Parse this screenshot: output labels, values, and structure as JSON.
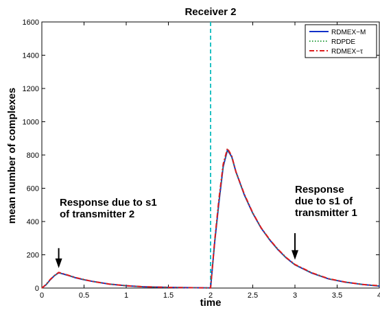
{
  "chart_data": {
    "type": "line",
    "title": "Receiver 2",
    "xlabel": "time",
    "ylabel": "mean number of complexes",
    "xlim": [
      0,
      4
    ],
    "ylim": [
      0,
      1600
    ],
    "xticks": [
      "0",
      "0.5",
      "1",
      "1.5",
      "2",
      "2.5",
      "3",
      "3.5",
      "4"
    ],
    "yticks": [
      "0",
      "200",
      "400",
      "600",
      "800",
      "1000",
      "1200",
      "1400",
      "1600"
    ],
    "legend_position": "top-right",
    "vline": {
      "x": 2,
      "color": "#22c1c3",
      "style": "dashed"
    },
    "x": [
      0,
      0.05,
      0.1,
      0.15,
      0.2,
      0.3,
      0.4,
      0.5,
      0.6,
      0.8,
      1.0,
      1.2,
      1.5,
      1.8,
      2.0,
      2.05,
      2.1,
      2.15,
      2.2,
      2.25,
      2.3,
      2.4,
      2.5,
      2.6,
      2.7,
      2.8,
      2.9,
      3.0,
      3.2,
      3.4,
      3.6,
      3.8,
      4.0
    ],
    "series": [
      {
        "name": "RDMEX−M",
        "color": "#1030c8",
        "style": "solid",
        "values": [
          0,
          20,
          50,
          75,
          92,
          78,
          62,
          50,
          40,
          24,
          14,
          8,
          4,
          2,
          1,
          280,
          520,
          730,
          830,
          790,
          700,
          560,
          450,
          360,
          290,
          230,
          180,
          140,
          90,
          55,
          35,
          22,
          12
        ]
      },
      {
        "name": "RDPDE",
        "color": "#2ea043",
        "style": "dotted",
        "values": [
          0,
          20,
          50,
          75,
          92,
          78,
          62,
          50,
          40,
          24,
          14,
          8,
          4,
          2,
          1,
          280,
          520,
          730,
          835,
          785,
          695,
          560,
          450,
          360,
          290,
          230,
          180,
          140,
          90,
          55,
          35,
          22,
          12
        ]
      },
      {
        "name": "RDMEX−τ",
        "color": "#dd1c1c",
        "style": "dash-dot",
        "values": [
          0,
          22,
          52,
          76,
          94,
          79,
          63,
          51,
          40,
          24,
          14,
          8,
          4,
          2,
          1,
          290,
          540,
          745,
          840,
          795,
          700,
          565,
          452,
          362,
          292,
          232,
          182,
          142,
          92,
          56,
          36,
          22,
          14
        ]
      }
    ],
    "annotations": [
      {
        "lines": [
          "Response due to s1",
          "of transmitter 2"
        ],
        "arrow_from": [
          0.2,
          240
        ],
        "arrow_to": [
          0.2,
          120
        ]
      },
      {
        "lines": [
          "Response",
          "due to s1 of",
          "transmitter 1"
        ],
        "arrow_from": [
          3.0,
          330
        ],
        "arrow_to": [
          3.0,
          170
        ]
      }
    ]
  }
}
